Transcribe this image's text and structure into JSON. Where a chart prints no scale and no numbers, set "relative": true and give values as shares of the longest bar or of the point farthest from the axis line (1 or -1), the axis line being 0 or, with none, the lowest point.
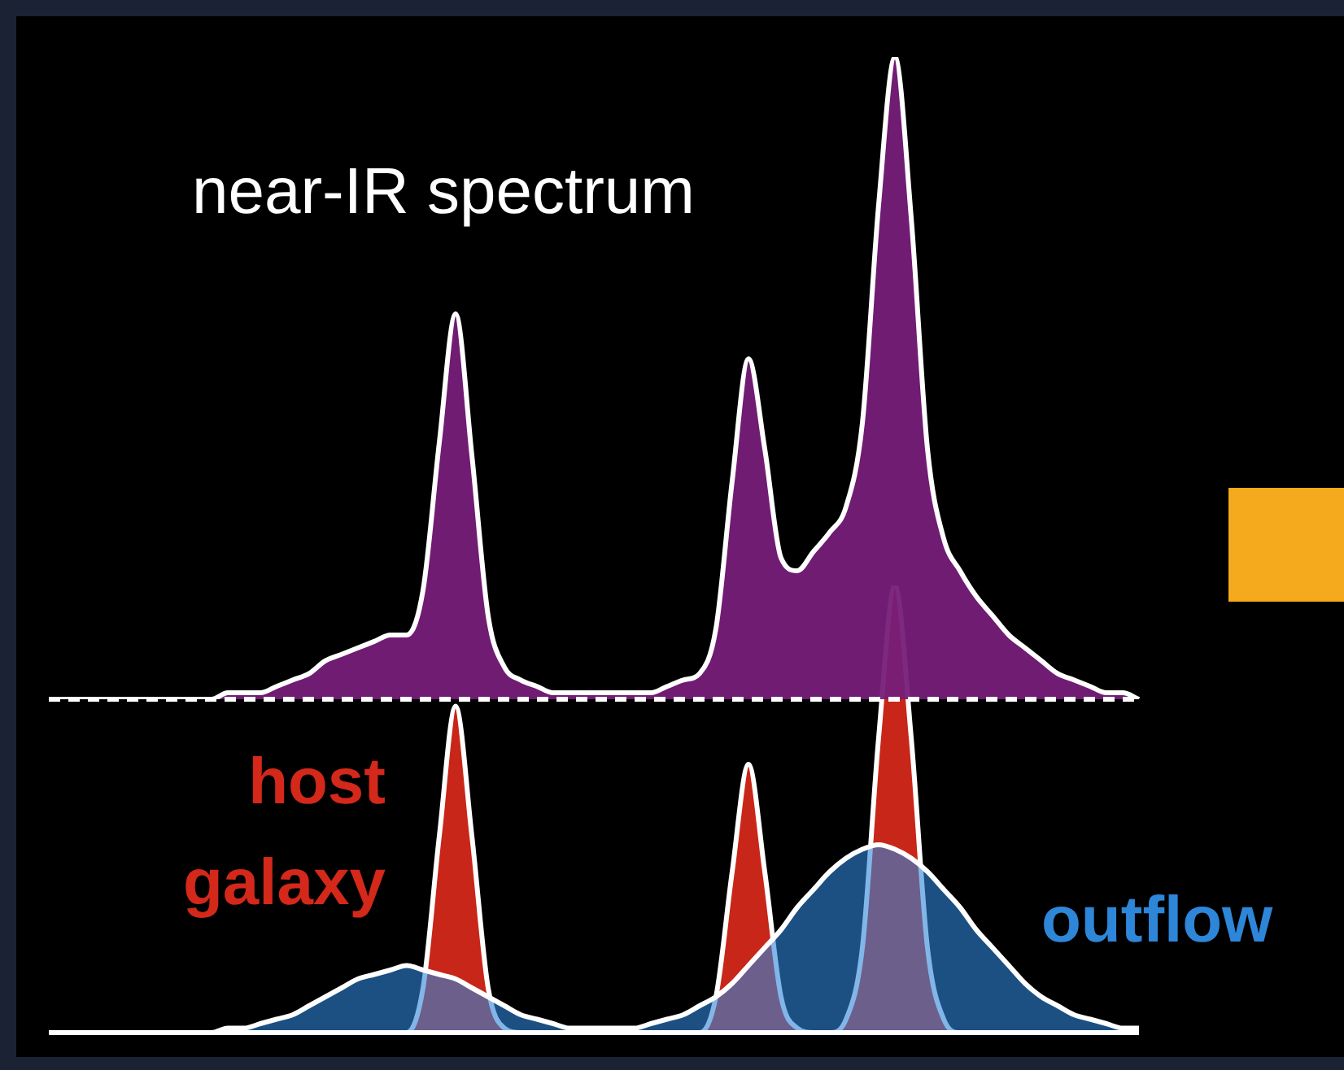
{
  "chart_data": [
    {
      "type": "area",
      "relative": true,
      "legend": false,
      "annotations": [
        "near-IR spectrum"
      ],
      "categories": [
        null,
        null,
        null,
        null,
        null,
        null,
        null,
        null,
        null,
        null,
        null,
        null,
        null,
        null,
        null,
        null,
        null,
        null,
        null,
        null,
        null,
        null,
        null,
        null,
        null,
        null,
        null,
        null,
        null,
        null,
        null,
        null,
        null,
        null,
        null,
        null,
        null,
        null,
        null,
        null,
        null,
        null,
        null,
        null,
        null,
        null,
        null,
        null,
        null,
        null,
        null,
        null,
        null,
        null,
        null,
        null,
        null,
        null,
        null,
        null,
        null,
        null,
        null,
        null,
        null,
        null,
        null,
        null
      ],
      "ref_lines": [
        {
          "axis": "y",
          "value": 0,
          "color": "#ffffff",
          "line_style": "dashed"
        }
      ],
      "series": [
        {
          "color": "#761e78",
          "values": [
            0,
            0,
            0,
            0,
            0,
            0,
            0,
            0,
            0,
            0,
            0,
            0.01,
            0.01,
            0.01,
            0.02,
            0.03,
            0.04,
            0.06,
            0.07,
            0.08,
            0.09,
            0.1,
            0.1,
            0.17,
            0.4,
            0.6,
            0.38,
            0.13,
            0.05,
            0.03,
            0.02,
            0.01,
            0.01,
            0.01,
            0.01,
            0.01,
            0.01,
            0.01,
            0.02,
            0.03,
            0.04,
            0.11,
            0.34,
            0.53,
            0.39,
            0.22,
            0.2,
            0.23,
            0.26,
            0.3,
            0.43,
            0.77,
            1,
            0.75,
            0.39,
            0.25,
            0.2,
            0.16,
            0.13,
            0.1,
            0.08,
            0.06,
            0.04,
            0.03,
            0.02,
            0.01,
            0.01,
            0
          ]
        }
      ]
    },
    {
      "type": "area",
      "relative": true,
      "legend": false,
      "categories": [
        null,
        null,
        null,
        null,
        null,
        null,
        null,
        null,
        null,
        null,
        null,
        null,
        null,
        null,
        null,
        null,
        null,
        null,
        null,
        null,
        null,
        null,
        null,
        null,
        null,
        null,
        null,
        null,
        null,
        null,
        null,
        null,
        null,
        null,
        null,
        null,
        null,
        null,
        null,
        null,
        null,
        null,
        null,
        null,
        null,
        null,
        null,
        null,
        null,
        null,
        null,
        null,
        null,
        null,
        null,
        null,
        null,
        null,
        null,
        null,
        null,
        null,
        null,
        null,
        null,
        null,
        null,
        null
      ],
      "ref_lines": [
        {
          "axis": "y",
          "value": 0,
          "color": "#ffffff",
          "line_style": "solid"
        }
      ],
      "series": [
        {
          "name": "host galaxy",
          "color": "#d3281a",
          "values": [
            0,
            0,
            0,
            0,
            0,
            0,
            0,
            0,
            0,
            0,
            0,
            0,
            0,
            0,
            0,
            0,
            0,
            0,
            0,
            0,
            0,
            0,
            0,
            0.1,
            0.44,
            0.73,
            0.44,
            0.1,
            0.01,
            0,
            0,
            0,
            0,
            0,
            0,
            0,
            0,
            0,
            0,
            0,
            0,
            0.08,
            0.36,
            0.6,
            0.36,
            0.08,
            0.01,
            0,
            0,
            0.03,
            0.19,
            0.66,
            1,
            0.66,
            0.19,
            0.03,
            0,
            0,
            0,
            0,
            0,
            0,
            0,
            0,
            0,
            0,
            0,
            0
          ]
        },
        {
          "name": "outflow",
          "color": "#2e86d8",
          "values": [
            0,
            0,
            0,
            0,
            0,
            0,
            0,
            0,
            0,
            0,
            0,
            0.01,
            0.01,
            0.02,
            0.03,
            0.04,
            0.06,
            0.08,
            0.1,
            0.12,
            0.13,
            0.14,
            0.15,
            0.14,
            0.13,
            0.12,
            0.1,
            0.08,
            0.06,
            0.04,
            0.03,
            0.02,
            0.01,
            0.01,
            0.01,
            0.01,
            0.01,
            0.02,
            0.03,
            0.04,
            0.06,
            0.08,
            0.11,
            0.15,
            0.19,
            0.23,
            0.28,
            0.32,
            0.36,
            0.39,
            0.41,
            0.42,
            0.41,
            0.39,
            0.36,
            0.32,
            0.28,
            0.23,
            0.19,
            0.15,
            0.11,
            0.08,
            0.06,
            0.04,
            0.03,
            0.02,
            0.01,
            0.01
          ]
        }
      ]
    }
  ]
}
